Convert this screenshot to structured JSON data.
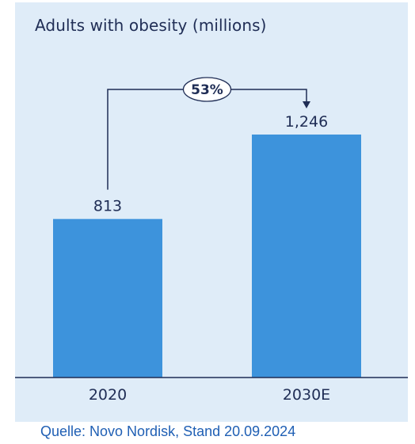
{
  "chart_data": {
    "type": "bar",
    "title": "Adults with obesity (millions)",
    "categories": [
      "2020",
      "2030E"
    ],
    "values": [
      813,
      1246
    ],
    "value_labels": [
      "813",
      "1,246"
    ],
    "growth_annotation": "53%",
    "ylim": [
      0,
      1600
    ],
    "grid": false,
    "bar_color": "#3d93dc",
    "background_color": "#dfecf8",
    "text_color": "#1f2d55"
  },
  "source": "Quelle: Novo Nordisk, Stand 20.09.2024"
}
